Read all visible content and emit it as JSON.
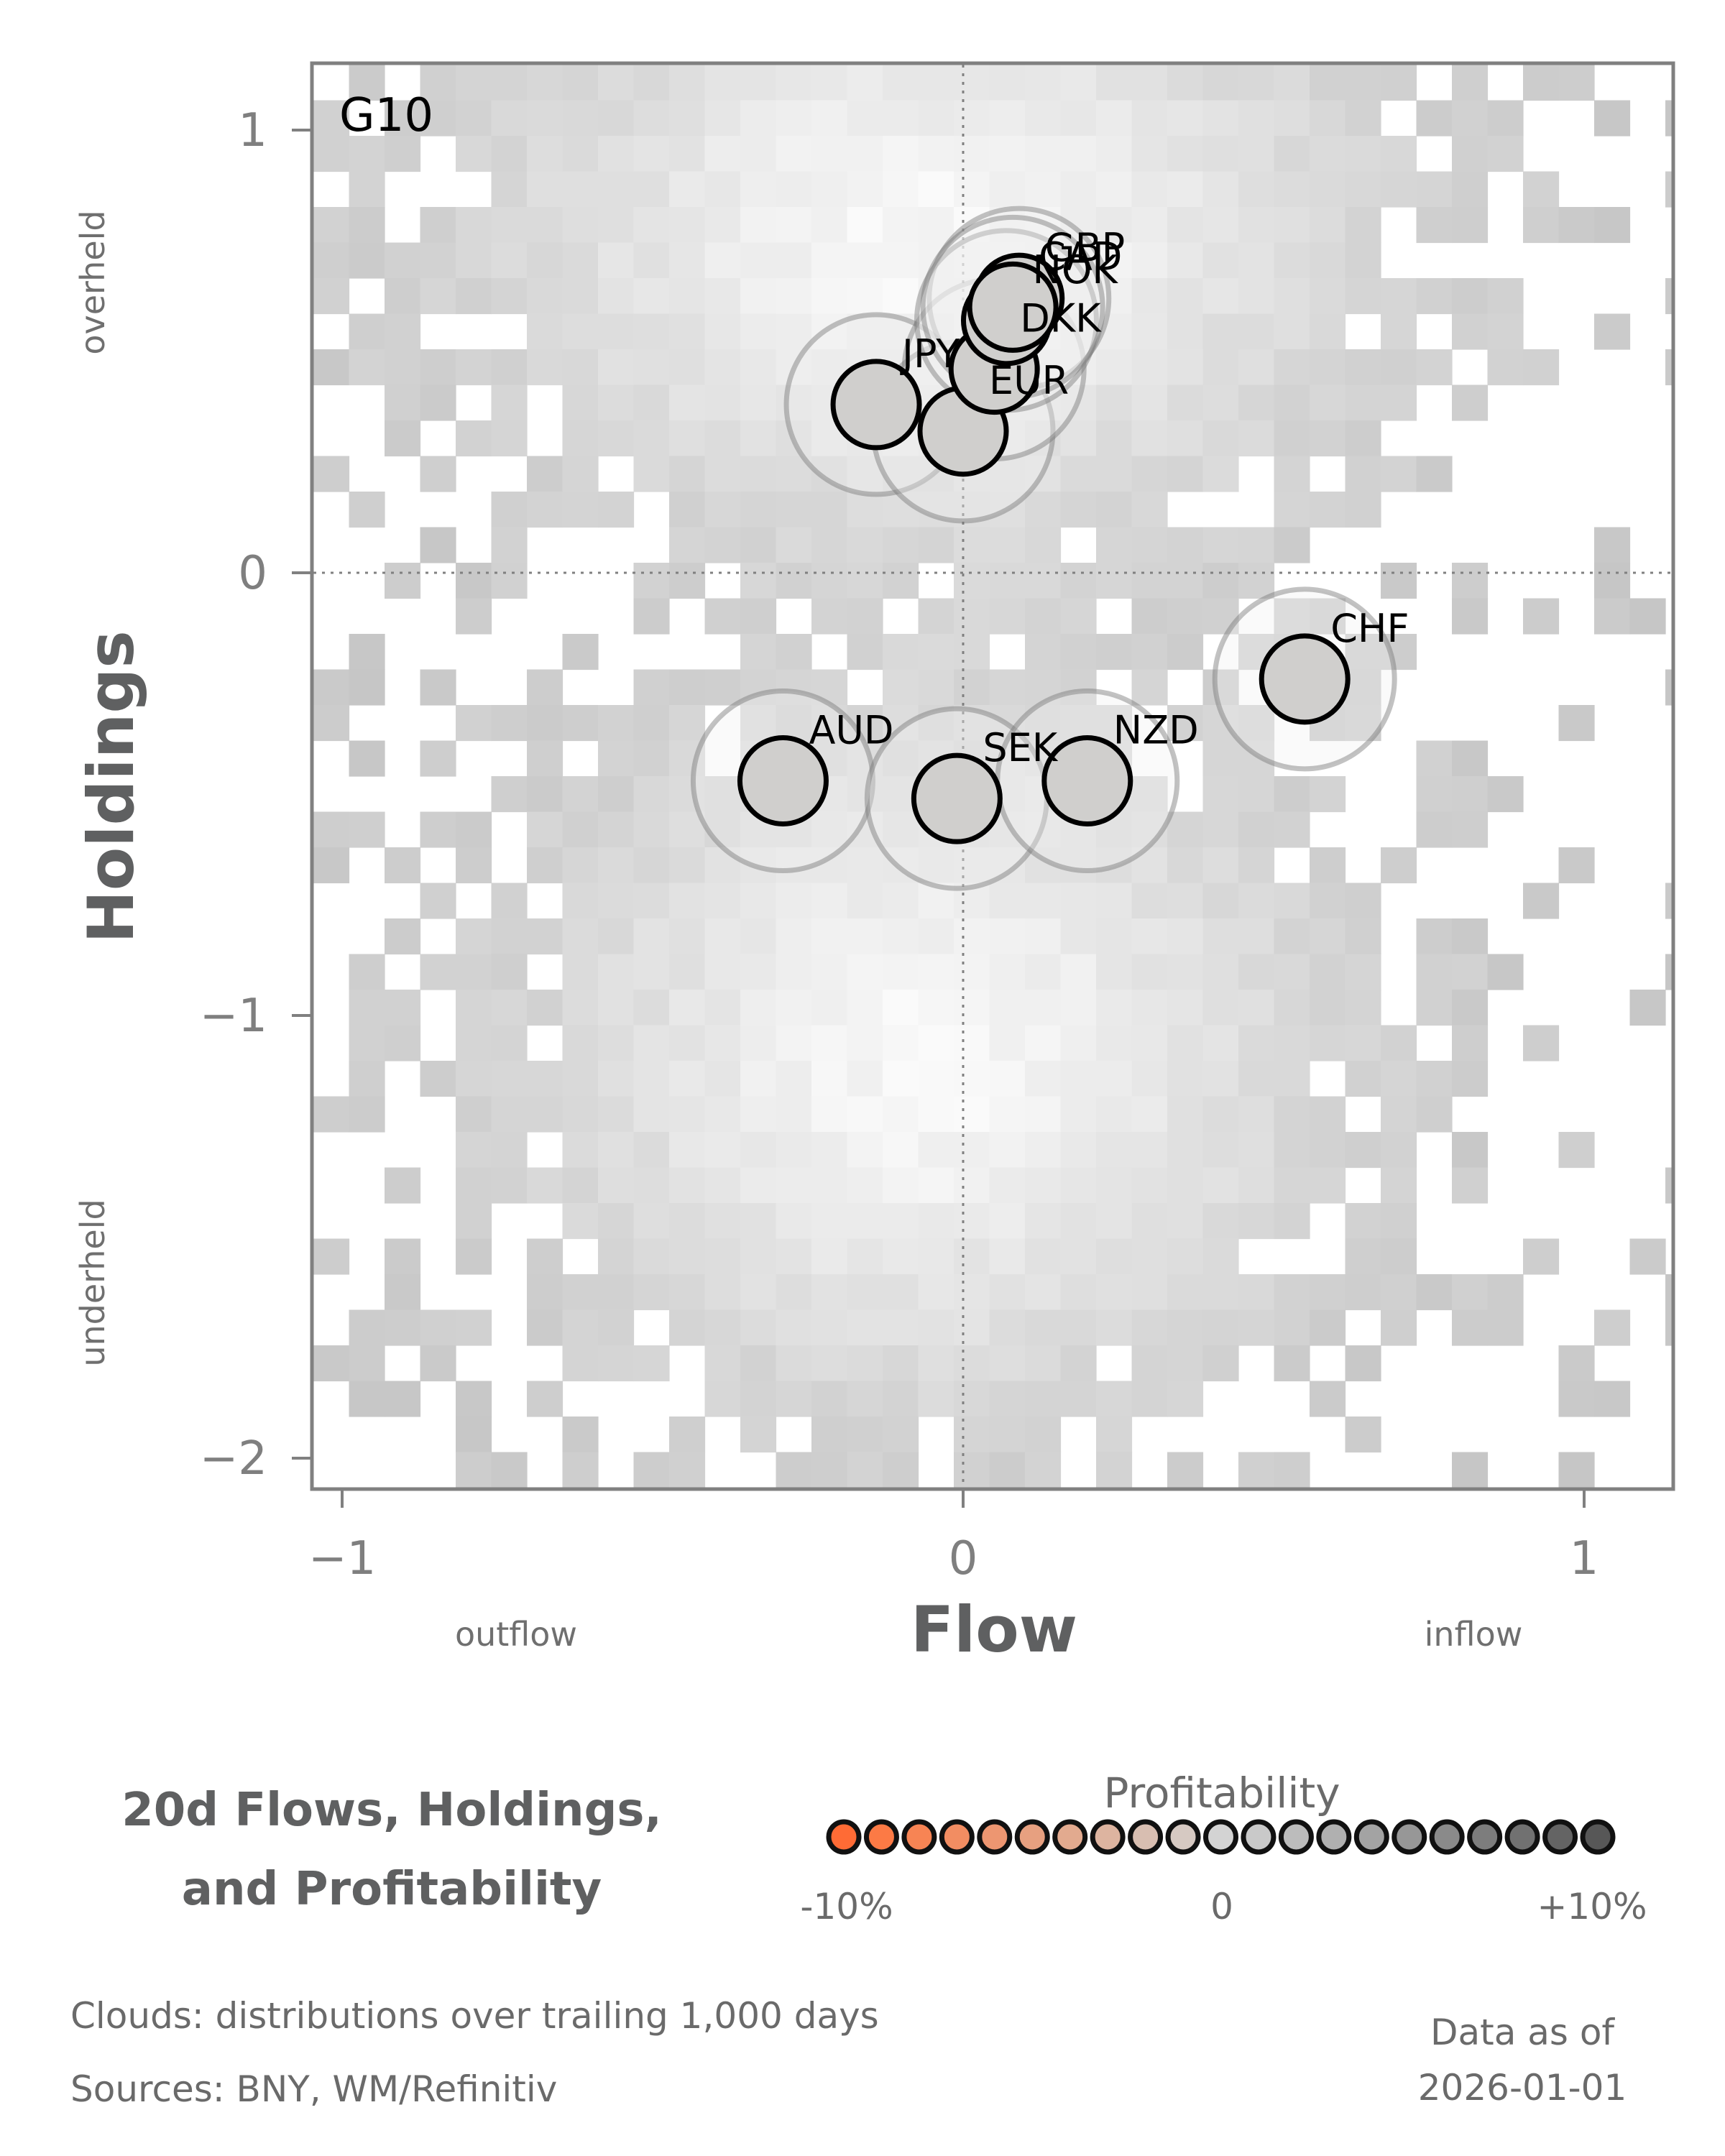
{
  "chart_data": {
    "type": "scatter",
    "title": "20d Flows, Holdings, and Profitability",
    "title_lines": [
      "20d Flows, Holdings,",
      "and Profitability"
    ],
    "panel_label": "G10",
    "xlabel": "Flow",
    "ylabel": "Holdings",
    "x_hints": {
      "low": "outflow",
      "high": "inflow"
    },
    "y_hints": {
      "low": "underheld",
      "high": "overheld"
    },
    "xlim": [
      -1.05,
      1.15
    ],
    "ylim": [
      -2.08,
      1.15
    ],
    "x_ticks": [
      {
        "v": -1,
        "label": "−1"
      },
      {
        "v": 0,
        "label": "0"
      },
      {
        "v": 1,
        "label": "1"
      }
    ],
    "y_ticks": [
      {
        "v": 1,
        "label": "1"
      },
      {
        "v": 0,
        "label": "0"
      },
      {
        "v": -1,
        "label": "−1"
      },
      {
        "v": -2,
        "label": "−2"
      }
    ],
    "reference_lines": {
      "x": 0,
      "y": 0,
      "style": "dotted"
    },
    "grid": false,
    "series": [
      {
        "name": "JPY",
        "x": -0.14,
        "y": 0.38,
        "profitability": 0
      },
      {
        "name": "EUR",
        "x": 0.0,
        "y": 0.32,
        "profitability": 0
      },
      {
        "name": "DKK",
        "x": 0.05,
        "y": 0.46,
        "profitability": 0
      },
      {
        "name": "GBP",
        "x": 0.09,
        "y": 0.62,
        "profitability": 0
      },
      {
        "name": "NOK",
        "x": 0.07,
        "y": 0.57,
        "profitability": 0
      },
      {
        "name": "CAD",
        "x": 0.08,
        "y": 0.6,
        "profitability": 0
      },
      {
        "name": "CHF",
        "x": 0.55,
        "y": -0.24,
        "profitability": 0
      },
      {
        "name": "AUD",
        "x": -0.29,
        "y": -0.47,
        "profitability": 0
      },
      {
        "name": "SEK",
        "x": -0.01,
        "y": -0.51,
        "profitability": 0
      },
      {
        "name": "NZD",
        "x": 0.2,
        "y": -0.47,
        "profitability": 0
      }
    ],
    "clouds": {
      "description": "distributions over trailing 1,000 days",
      "cell_cols": 40,
      "cell_rows": 40,
      "clusters": [
        {
          "cx": -0.05,
          "cy": 0.75,
          "sx": 0.45,
          "sy": 0.42,
          "w": 1.0
        },
        {
          "cx": -0.05,
          "cy": -1.1,
          "sx": 0.4,
          "sy": 0.5,
          "w": 1.0
        }
      ]
    },
    "legend": {
      "title": "Profitability",
      "min_label": "-10%",
      "mid_label": "0",
      "max_label": "+10%",
      "range": [
        -10,
        10
      ],
      "colors": [
        "#ff6b35",
        "#fc7a45",
        "#f78454",
        "#f28d62",
        "#ed9671",
        "#e7a080",
        "#e2aa8f",
        "#ddb4a0",
        "#d8beb1",
        "#d6c9c2",
        "#d3d3d3",
        "#c9c9c9",
        "#bcbcbc",
        "#b0b0b0",
        "#a3a3a3",
        "#979797",
        "#8a8a8a",
        "#7d7d7d",
        "#717171",
        "#646464",
        "#575757"
      ]
    }
  },
  "footer": {
    "clouds_note": "Clouds:  distributions over trailing 1,000 days",
    "sources": "Sources:  BNY, WM/Refinitiv",
    "data_as_of_label": "Data as of",
    "data_as_of_date": "2026-01-01"
  },
  "colors": {
    "axis": "#808080",
    "marker_fill": "#d0cfcd",
    "marker_edge": "#000000",
    "halo_edge": "#9a9a9a"
  }
}
